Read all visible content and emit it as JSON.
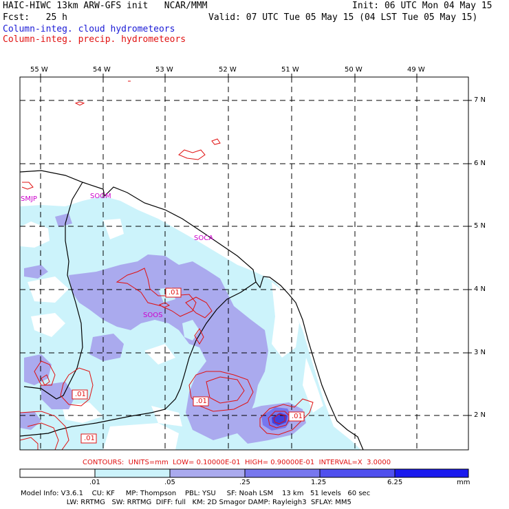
{
  "header": {
    "line1_left": "HAIC-HIWC 13km ARW-GFS init   NCAR/MMM",
    "line1_right": "Init: 06 UTC Mon 04 May 15",
    "line2_left": "Fcst:   25 h",
    "line2_right": "Valid: 07 UTC Tue 05 May 15 (04 LST Tue 05 May 15)",
    "field1": "Column-integ. cloud hydrometeors",
    "field2": "Column-integ. precip. hydrometeors"
  },
  "lon_labels": [
    "55 W",
    "54 W",
    "53 W",
    "52 W",
    "51 W",
    "50 W",
    "49 W"
  ],
  "lat_labels": [
    "7 N",
    "6 N",
    "5 N",
    "4 N",
    "3 N",
    "2 N"
  ],
  "stations": [
    "SMJP",
    "SOGM",
    "SOCA",
    "SOOS"
  ],
  "contour_labels": [
    ".01",
    ".01",
    ".01",
    ".01",
    ".01"
  ],
  "contour_info": "CONTOURS:  UNITS=mm  LOW= 0.10000E-01  HIGH= 0.90000E-01  INTERVAL=X  3.0000",
  "colorbar": {
    "labels": [
      ".01",
      ".05",
      ".25",
      "1.25",
      "6.25"
    ],
    "unit": "mm",
    "colors": [
      "#ffffff",
      "#ccf3fb",
      "#aaaaee",
      "#7777ee",
      "#5050ee",
      "#1a1aee"
    ]
  },
  "colors": {
    "cloud_light": "#ccf3fb",
    "cloud_mid": "#aaaaee",
    "cloud_dark": "#6060e0",
    "precip_contour": "#e01010",
    "station": "#cc00cc"
  },
  "footer": {
    "line1": "Model Info: V3.6.1    CU: KF     MP: Thompson    PBL: YSU     SF: Noah LSM    13 km   51 levels   60 sec",
    "line2": "                     LW: RRTMG   SW: RRTMG  DIFF: full   KM: 2D Smagor DAMP: Rayleigh3  SFLAY: MM5"
  }
}
